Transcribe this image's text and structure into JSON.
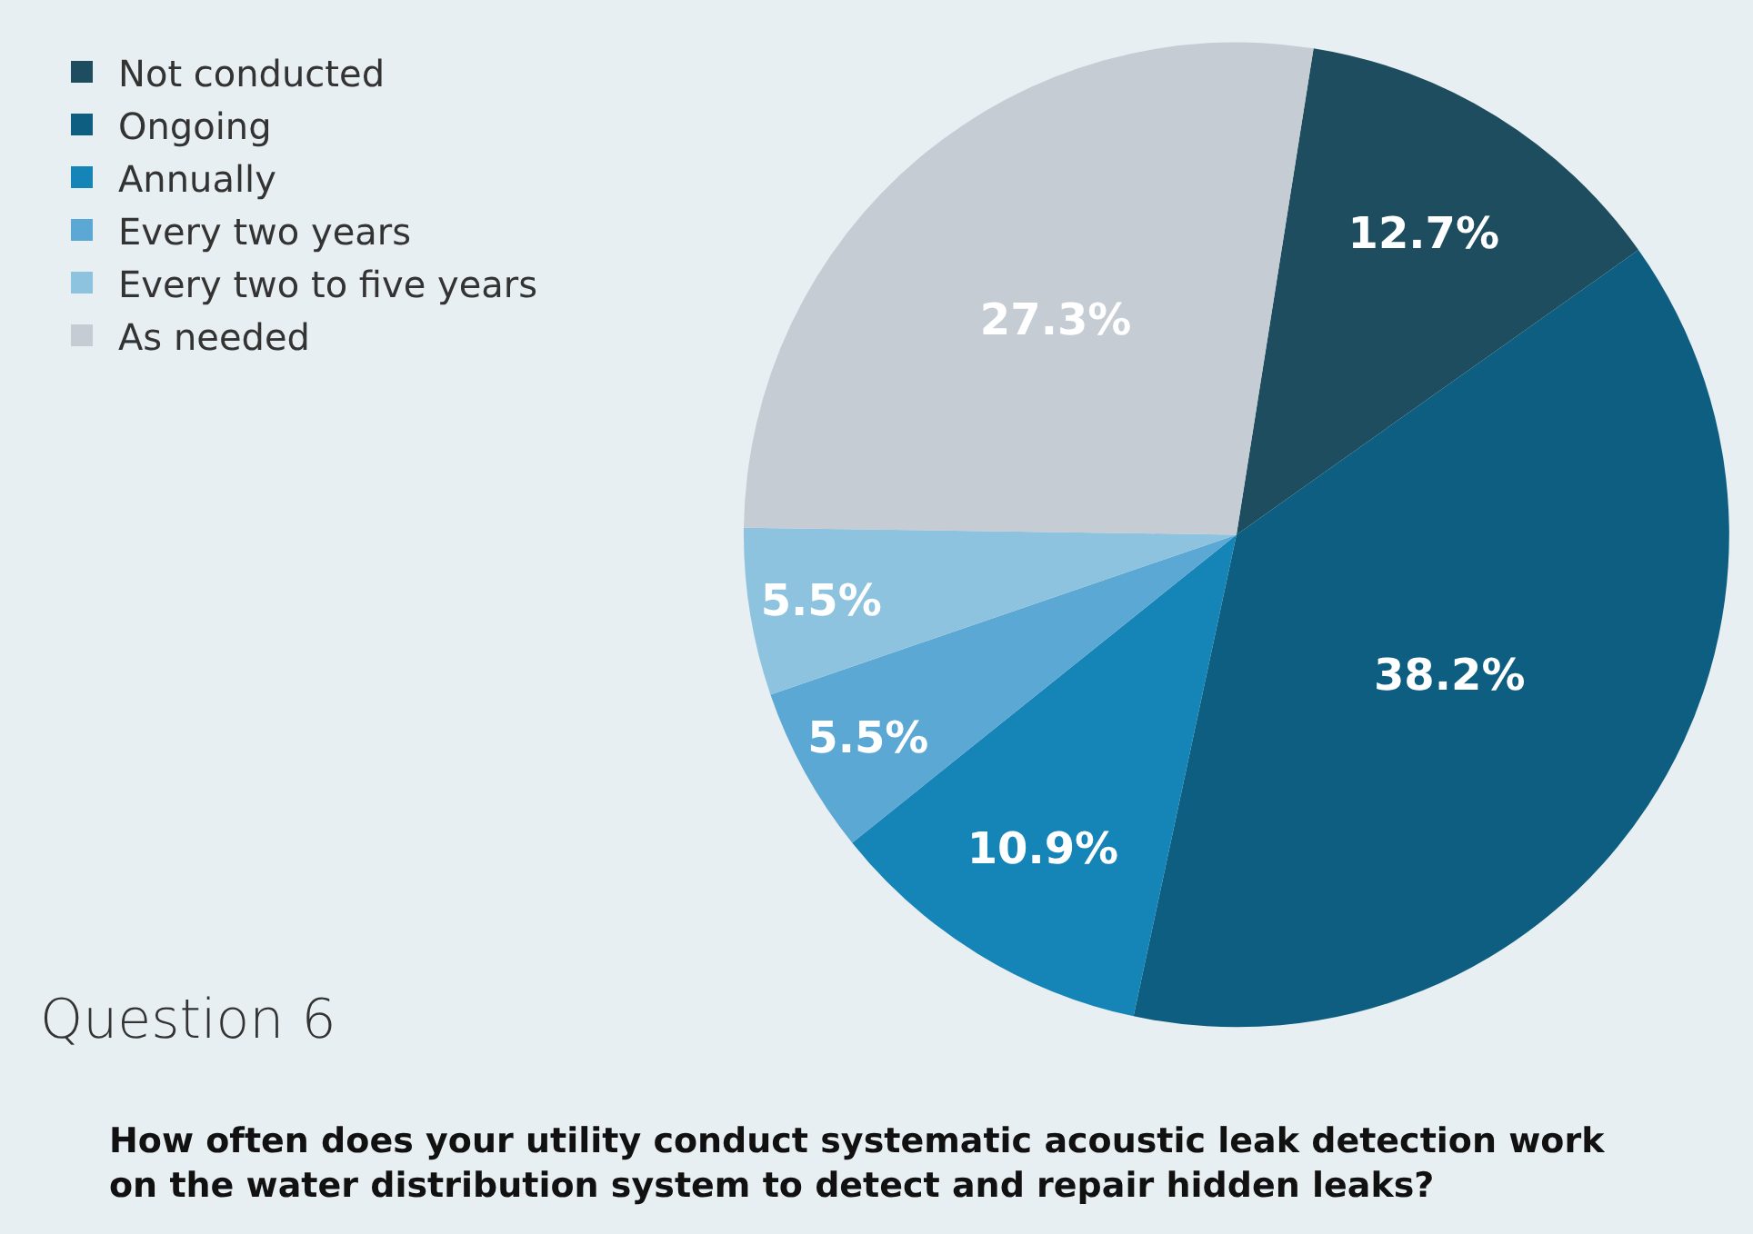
{
  "chart_data": {
    "type": "pie",
    "title": "Question 6",
    "subtitle": "How often does your utility conduct systematic acoustic leak detection work on the water distribution system to detect and repair hidden leaks?",
    "categories": [
      "Not conducted",
      "Ongoing",
      "Annually",
      "Every two years",
      "Every two to five years",
      "As needed"
    ],
    "values": [
      12.7,
      38.2,
      10.9,
      5.5,
      5.5,
      27.3
    ],
    "colors": [
      "#1d4d5e",
      "#0d5e80",
      "#1584b6",
      "#5ca8d4",
      "#8ec3e0",
      "#c5ccd4"
    ],
    "value_labels": [
      "12.7%",
      "38.2%",
      "10.9%",
      "5.5%",
      "5.5%",
      "27.3%"
    ],
    "legend": "top left"
  }
}
